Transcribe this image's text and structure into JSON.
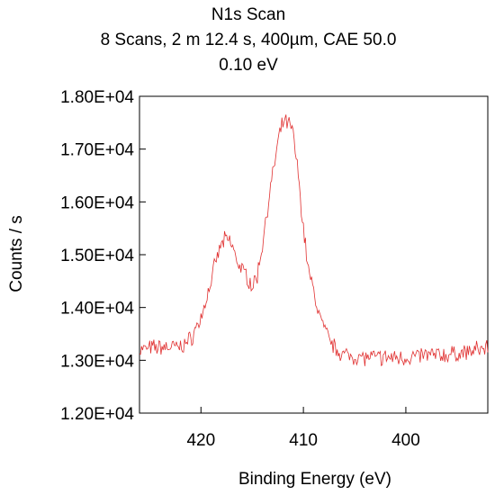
{
  "chart_data": {
    "type": "line",
    "title_lines": [
      "N1s Scan",
      "8 Scans,  2 m 12.4 s,  400µm,  CAE 50.0",
      "0.10 eV"
    ],
    "xlabel": "Binding Energy (eV)",
    "ylabel": "Counts / s",
    "x_reversed": true,
    "xlim": [
      426,
      392
    ],
    "ylim": [
      12000,
      18000
    ],
    "x_ticks": [
      420,
      410,
      400
    ],
    "x_tick_labels": [
      "420",
      "410",
      "400"
    ],
    "y_ticks": [
      12000,
      13000,
      14000,
      15000,
      16000,
      17000,
      18000
    ],
    "y_tick_labels": [
      "1.20E+04",
      "1.30E+04",
      "1.40E+04",
      "1.50E+04",
      "1.60E+04",
      "1.70E+04",
      "1.80E+04"
    ],
    "grid": false,
    "line_color": "#e03030",
    "series": [
      {
        "x": [
          426,
          424,
          422,
          421,
          420,
          419,
          418.5,
          418,
          417.5,
          417,
          416.5,
          416,
          415.5,
          415,
          414.5,
          414,
          413.5,
          413,
          412.5,
          412,
          411.5,
          411,
          410.5,
          410,
          409.5,
          409,
          408.5,
          408,
          407.5,
          407,
          406,
          404,
          402,
          400,
          398,
          396,
          394,
          392
        ],
        "values": [
          13200,
          13250,
          13250,
          13400,
          13800,
          14500,
          14900,
          15200,
          15300,
          15200,
          14900,
          14700,
          14600,
          14400,
          14600,
          15200,
          15900,
          16500,
          17100,
          17500,
          17500,
          17300,
          16500,
          15500,
          14700,
          14300,
          13900,
          13600,
          13400,
          13250,
          13100,
          13050,
          13050,
          13050,
          13100,
          13100,
          13150,
          13250
        ]
      }
    ]
  }
}
